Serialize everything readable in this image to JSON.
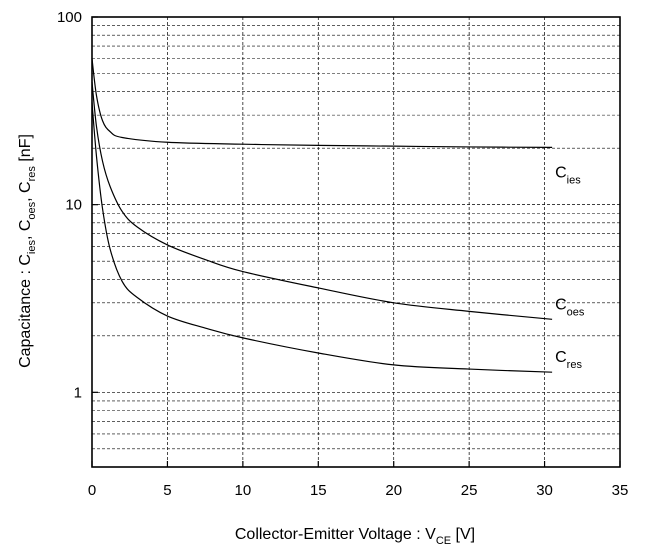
{
  "chart_data": {
    "type": "line",
    "title": "",
    "xlabel": {
      "main": "Collector-Emitter Voltage : V",
      "sub": "CE",
      "unit": " [V]"
    },
    "ylabel": {
      "main": "Capacitance : C",
      "sub1": "ies",
      "sep1": ", C",
      "sub2": "oes",
      "sep2": ", C",
      "sub3": "res",
      "unit": " [nF]"
    },
    "xlim": [
      0,
      35
    ],
    "ylim": [
      0.4,
      100
    ],
    "y_scale": "log",
    "x_ticks": [
      "0",
      "5",
      "10",
      "15",
      "20",
      "25",
      "30",
      "35"
    ],
    "y_ticks": [
      "1",
      "10",
      "100"
    ],
    "grid": true,
    "series": [
      {
        "name": "Cies",
        "label_main": "C",
        "label_sub": "ies",
        "x": [
          0,
          0.3,
          0.7,
          1.2,
          2,
          5,
          10,
          15,
          20,
          25,
          30.5
        ],
        "y": [
          60,
          38,
          28,
          24.5,
          22.8,
          21.5,
          21,
          20.7,
          20.5,
          20.3,
          20.2
        ]
      },
      {
        "name": "Coes",
        "label_main": "C",
        "label_sub": "oes",
        "x": [
          0,
          0.3,
          0.7,
          1.2,
          2,
          3,
          5,
          7.5,
          10,
          15,
          20,
          25,
          30.5
        ],
        "y": [
          45,
          26,
          17,
          12.5,
          9.2,
          7.6,
          6.1,
          5.1,
          4.4,
          3.6,
          3.0,
          2.7,
          2.45
        ]
      },
      {
        "name": "Cres",
        "label_main": "C",
        "label_sub": "res",
        "x": [
          0,
          0.3,
          0.7,
          1.2,
          2,
          3,
          5,
          7.5,
          10,
          15,
          20,
          25,
          30.5
        ],
        "y": [
          35,
          18,
          9.5,
          5.8,
          3.9,
          3.2,
          2.55,
          2.2,
          1.95,
          1.62,
          1.4,
          1.33,
          1.28
        ]
      }
    ]
  }
}
